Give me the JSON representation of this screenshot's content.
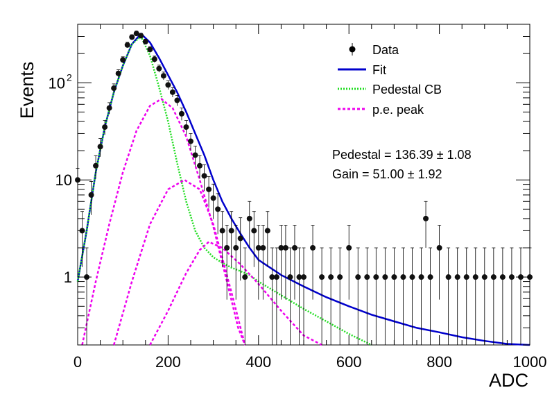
{
  "chart_data": {
    "type": "scatter",
    "title": "",
    "xlabel": "ADC",
    "ylabel": "Events",
    "xlim": [
      0,
      1000
    ],
    "ylim": [
      0.2,
      400
    ],
    "y_scale": "log",
    "grid": false,
    "legend_placement": "top-right",
    "x_ticks": [
      {
        "value": 0,
        "label": "0"
      },
      {
        "value": 200,
        "label": "200"
      },
      {
        "value": 400,
        "label": "400"
      },
      {
        "value": 600,
        "label": "600"
      },
      {
        "value": 800,
        "label": "800"
      },
      {
        "value": 1000,
        "label": "1000"
      }
    ],
    "y_ticks": [
      {
        "value": 1,
        "label": "1"
      },
      {
        "value": 10,
        "label": "10"
      },
      {
        "value": 100,
        "label": "10",
        "sup": "2"
      }
    ],
    "legend": [
      {
        "label": "Data",
        "kind": "marker",
        "color": "#000000"
      },
      {
        "label": "Fit",
        "kind": "line",
        "color": "#0000cc"
      },
      {
        "label": "Pedestal CB",
        "kind": "dotted",
        "color": "#22dd22"
      },
      {
        "label": "p.e. peak",
        "kind": "dashed",
        "color": "#ee00ee"
      }
    ],
    "annotations": [
      {
        "text": "Pedestal = 136.39",
        "pm": "±",
        "err": "1.08"
      },
      {
        "text": "Gain = 51.00",
        "pm": "±",
        "err": "1.92"
      }
    ],
    "data": {
      "x": [
        0,
        10,
        20,
        30,
        40,
        50,
        60,
        70,
        80,
        90,
        100,
        110,
        120,
        130,
        140,
        150,
        160,
        170,
        180,
        190,
        200,
        210,
        220,
        230,
        240,
        250,
        260,
        270,
        280,
        290,
        300,
        310,
        320,
        330,
        340,
        350,
        360,
        370,
        380,
        390,
        400,
        410,
        420,
        430,
        440,
        450,
        460,
        470,
        480,
        490,
        500,
        520,
        540,
        560,
        580,
        600,
        620,
        640,
        660,
        680,
        700,
        720,
        740,
        760,
        770,
        780,
        800,
        820,
        840,
        860,
        880,
        900,
        920,
        940,
        960,
        980,
        1000
      ],
      "y": [
        10,
        3,
        1,
        7,
        14,
        22,
        35,
        55,
        88,
        125,
        172,
        245,
        295,
        322,
        305,
        265,
        220,
        175,
        140,
        118,
        95,
        80,
        66,
        48,
        35,
        25,
        18,
        14,
        11,
        8,
        6.5,
        5,
        3,
        2,
        3,
        2,
        2.5,
        1,
        4,
        3,
        2,
        2,
        3,
        1,
        1,
        2,
        2,
        1,
        2,
        1,
        1,
        2,
        1,
        1,
        1,
        2,
        1,
        1,
        1,
        1,
        1,
        1,
        1,
        1,
        4,
        1,
        2,
        1,
        1,
        1,
        1,
        1,
        1,
        1,
        1,
        1,
        1
      ]
    },
    "series": [
      {
        "name": "Fit",
        "color": "#0000cc",
        "style": "solid",
        "x": [
          0,
          20,
          40,
          60,
          80,
          100,
          120,
          140,
          160,
          180,
          200,
          220,
          240,
          260,
          280,
          300,
          320,
          340,
          360,
          380,
          400,
          450,
          500,
          550,
          600,
          650,
          700,
          750,
          800,
          850,
          900,
          950,
          1000
        ],
        "y": [
          0.9,
          3,
          12,
          35,
          80,
          150,
          250,
          320,
          260,
          180,
          120,
          80,
          50,
          30,
          18,
          10,
          6,
          4,
          2.8,
          2,
          1.5,
          1.05,
          0.8,
          0.62,
          0.5,
          0.41,
          0.35,
          0.3,
          0.27,
          0.24,
          0.22,
          0.205,
          0.2
        ]
      },
      {
        "name": "Pedestal CB",
        "color": "#22dd22",
        "style": "dotted",
        "x": [
          0,
          20,
          40,
          60,
          80,
          100,
          120,
          140,
          160,
          180,
          200,
          220,
          240,
          260,
          280,
          300,
          320,
          340,
          360,
          380,
          400,
          450,
          500,
          550,
          600,
          650
        ],
        "y": [
          0.9,
          3,
          12,
          35,
          80,
          150,
          250,
          300,
          190,
          90,
          40,
          15,
          6,
          3,
          2,
          1.6,
          1.4,
          1.25,
          1.15,
          1.05,
          0.9,
          0.65,
          0.47,
          0.35,
          0.26,
          0.2
        ]
      },
      {
        "name": "p.e. peak",
        "color": "#ee00ee",
        "style": "dashed",
        "x": [
          10,
          40,
          70,
          100,
          130,
          160,
          185,
          210,
          240,
          270,
          300,
          330,
          355,
          370
        ],
        "y": [
          0.2,
          0.9,
          3.5,
          12,
          32,
          58,
          68,
          55,
          28,
          10,
          3.3,
          0.9,
          0.3,
          0.2
        ]
      },
      {
        "name": "p.e. peak",
        "color": "#ee00ee",
        "style": "dashed",
        "x": [
          80,
          120,
          160,
          200,
          236,
          270,
          300,
          340,
          370
        ],
        "y": [
          0.2,
          0.9,
          3.5,
          8,
          10,
          8,
          3.5,
          0.7,
          0.2
        ]
      },
      {
        "name": "p.e. peak",
        "color": "#ee00ee",
        "style": "dashed",
        "x": [
          160,
          200,
          240,
          270,
          290,
          320,
          360,
          400,
          450,
          500,
          540
        ],
        "y": [
          0.2,
          0.45,
          1.1,
          1.9,
          2.3,
          2.0,
          1.35,
          0.85,
          0.45,
          0.25,
          0.2
        ]
      }
    ]
  }
}
